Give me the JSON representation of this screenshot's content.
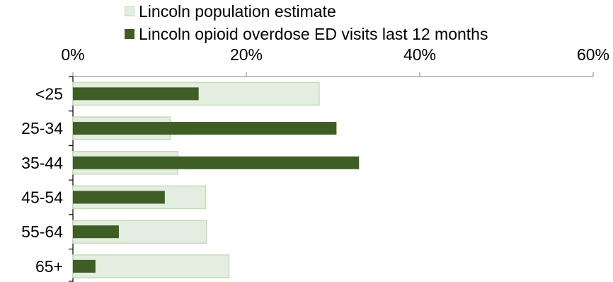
{
  "chart_data": {
    "type": "bar",
    "orientation": "horizontal",
    "categories": [
      "<25",
      "25-34",
      "35-44",
      "45-54",
      "55-64",
      "65+"
    ],
    "series": [
      {
        "name": "Lincoln population estimate",
        "values": [
          28.4,
          11.2,
          12.1,
          15.3,
          15.4,
          18.0
        ],
        "color": "#e3eee0",
        "border": "#c5dcb7"
      },
      {
        "name": "Lincoln opioid overdose ED visits last 12 months",
        "values": [
          14.5,
          30.4,
          33.0,
          10.6,
          5.3,
          2.6
        ],
        "color": "#3e5e26"
      }
    ],
    "x_ticks": [
      "0%",
      "20%",
      "40%",
      "60%"
    ],
    "x_tick_values": [
      0,
      20,
      40,
      60
    ],
    "xlim": [
      0,
      60
    ],
    "x_axis_position": "top",
    "legend_position": "top",
    "grid": false
  }
}
